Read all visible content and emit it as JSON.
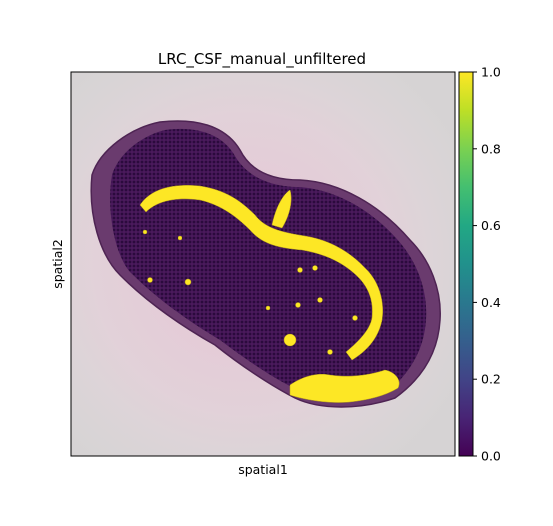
{
  "chart_data": {
    "type": "scatter",
    "title": "LRC_CSF_manual_unfiltered",
    "xlabel": "spatial1",
    "ylabel": "spatial2",
    "colorbar": {
      "colormap": "viridis",
      "range": [
        0.0,
        1.0
      ],
      "ticks": [
        "0.0",
        "0.2",
        "0.4",
        "0.6",
        "0.8",
        "1.0"
      ]
    },
    "series": [
      {
        "name": "",
        "value": 0.0,
        "color": "#440154"
      },
      {
        "name": "",
        "value": 1.0,
        "color": "#fde725"
      }
    ],
    "background": "tissue histology image",
    "grid": false,
    "xticks": false,
    "yticks": false
  }
}
